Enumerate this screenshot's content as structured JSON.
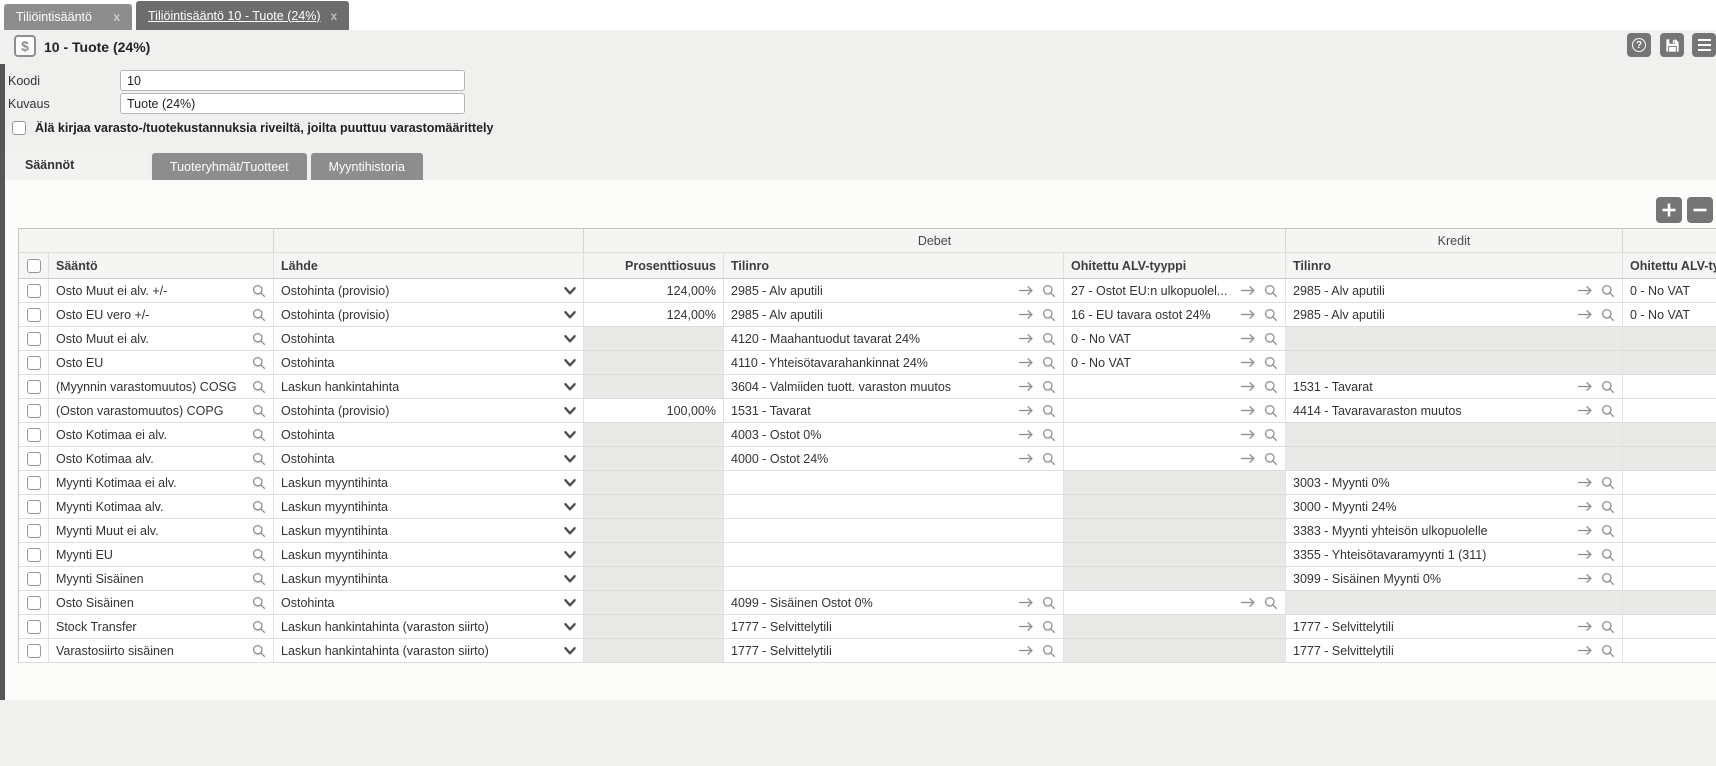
{
  "accent": {
    "tab_inactive": "#8d8d8d",
    "tab_active": "#6d6d6d",
    "button_gray": "#757575",
    "disabled_cell": "#e9e9e7"
  },
  "tabs": [
    {
      "label": "Tiliöintisääntö",
      "active": false
    },
    {
      "label": "Tiliöintisääntö 10 - Tuote (24%)",
      "active": true
    }
  ],
  "header": {
    "icon": "$",
    "title": "10 - Tuote (24%)"
  },
  "form": {
    "koodi_label": "Koodi",
    "koodi_value": "10",
    "kuvaus_label": "Kuvaus",
    "kuvaus_value": "Tuote (24%)",
    "checkbox_label": "Älä kirjaa varasto-/tuotekustannuksia riveiltä, joilta puuttuu varastomäärittely",
    "checkbox_checked": false
  },
  "subtabs": [
    {
      "label": "Säännöt",
      "active": true
    },
    {
      "label": "Tuoteryhmät/Tuotteet",
      "active": false
    },
    {
      "label": "Myyntihistoria",
      "active": false
    }
  ],
  "table": {
    "groups": {
      "debet": "Debet",
      "kredit": "Kredit"
    },
    "columns": [
      "Sääntö",
      "Lähde",
      "Prosenttiosuus",
      "Tilinro",
      "Ohitettu ALV-tyyppi",
      "Tilinro",
      "Ohitettu ALV-tyyppi"
    ],
    "rows": [
      {
        "rule": "Osto Muut ei alv. +/-",
        "source": "Ostohinta (provisio)",
        "pct": "124,00%",
        "pct_state": "value",
        "debet_tilinro": "2985 - Alv aputili",
        "debet_tilinro_state": "value",
        "debet_alv": "27 - Ostot EU:n ulkopuolel...",
        "debet_alv_state": "value",
        "kredit_tilinro": "2985 - Alv aputili",
        "kredit_tilinro_state": "value",
        "kredit_alv": "0 - No VAT",
        "kredit_alv_state": "value"
      },
      {
        "rule": "Osto EU vero +/-",
        "source": "Ostohinta (provisio)",
        "pct": "124,00%",
        "pct_state": "value",
        "debet_tilinro": "2985 - Alv aputili",
        "debet_tilinro_state": "value",
        "debet_alv": "16 - EU tavara ostot 24%",
        "debet_alv_state": "value",
        "kredit_tilinro": "2985 - Alv aputili",
        "kredit_tilinro_state": "value",
        "kredit_alv": "0 - No VAT",
        "kredit_alv_state": "value"
      },
      {
        "rule": "Osto Muut ei alv.",
        "source": "Ostohinta",
        "pct": "",
        "pct_state": "disabled",
        "debet_tilinro": "4120 - Maahantuodut tavarat 24%",
        "debet_tilinro_state": "value",
        "debet_alv": "0 - No VAT",
        "debet_alv_state": "value",
        "kredit_tilinro": "",
        "kredit_tilinro_state": "disabled",
        "kredit_alv": "",
        "kredit_alv_state": "disabled"
      },
      {
        "rule": "Osto EU",
        "source": "Ostohinta",
        "pct": "",
        "pct_state": "disabled",
        "debet_tilinro": "4110 - Yhteisötavarahankinnat 24%",
        "debet_tilinro_state": "value",
        "debet_alv": "0 - No VAT",
        "debet_alv_state": "value",
        "kredit_tilinro": "",
        "kredit_tilinro_state": "disabled",
        "kredit_alv": "",
        "kredit_alv_state": "disabled"
      },
      {
        "rule": "(Myynnin varastomuutos) COSG",
        "source": "Laskun hankintahinta",
        "pct": "",
        "pct_state": "disabled",
        "debet_tilinro": "3604 - Valmiiden tuott. varaston muutos",
        "debet_tilinro_state": "value",
        "debet_alv": "",
        "debet_alv_state": "icons",
        "kredit_tilinro": "1531 - Tavarat",
        "kredit_tilinro_state": "value",
        "kredit_alv": "",
        "kredit_alv_state": "blank"
      },
      {
        "rule": "(Oston varastomuutos) COPG",
        "source": "Ostohinta (provisio)",
        "pct": "100,00%",
        "pct_state": "value",
        "debet_tilinro": "1531 - Tavarat",
        "debet_tilinro_state": "value",
        "debet_alv": "",
        "debet_alv_state": "icons",
        "kredit_tilinro": "4414 - Tavaravaraston muutos",
        "kredit_tilinro_state": "value",
        "kredit_alv": "",
        "kredit_alv_state": "blank"
      },
      {
        "rule": "Osto Kotimaa ei alv.",
        "source": "Ostohinta",
        "pct": "",
        "pct_state": "disabled",
        "debet_tilinro": "4003 - Ostot 0%",
        "debet_tilinro_state": "value",
        "debet_alv": "",
        "debet_alv_state": "icons",
        "kredit_tilinro": "",
        "kredit_tilinro_state": "disabled",
        "kredit_alv": "",
        "kredit_alv_state": "disabled"
      },
      {
        "rule": "Osto Kotimaa alv.",
        "source": "Ostohinta",
        "pct": "",
        "pct_state": "disabled",
        "debet_tilinro": "4000 - Ostot 24%",
        "debet_tilinro_state": "value",
        "debet_alv": "",
        "debet_alv_state": "icons",
        "kredit_tilinro": "",
        "kredit_tilinro_state": "disabled",
        "kredit_alv": "",
        "kredit_alv_state": "disabled"
      },
      {
        "rule": "Myynti Kotimaa ei alv.",
        "source": "Laskun myyntihinta",
        "pct": "",
        "pct_state": "disabled",
        "debet_tilinro": "",
        "debet_tilinro_state": "blank",
        "debet_alv": "",
        "debet_alv_state": "disabled",
        "kredit_tilinro": "3003 - Myynti 0%",
        "kredit_tilinro_state": "value",
        "kredit_alv": "",
        "kredit_alv_state": "blank"
      },
      {
        "rule": "Myynti Kotimaa alv.",
        "source": "Laskun myyntihinta",
        "pct": "",
        "pct_state": "disabled",
        "debet_tilinro": "",
        "debet_tilinro_state": "blank",
        "debet_alv": "",
        "debet_alv_state": "disabled",
        "kredit_tilinro": "3000 - Myynti 24%",
        "kredit_tilinro_state": "value",
        "kredit_alv": "",
        "kredit_alv_state": "blank"
      },
      {
        "rule": "Myynti Muut ei alv.",
        "source": "Laskun myyntihinta",
        "pct": "",
        "pct_state": "disabled",
        "debet_tilinro": "",
        "debet_tilinro_state": "blank",
        "debet_alv": "",
        "debet_alv_state": "disabled",
        "kredit_tilinro": "3383 - Myynti yhteisön ulkopuolelle",
        "kredit_tilinro_state": "value",
        "kredit_alv": "",
        "kredit_alv_state": "blank"
      },
      {
        "rule": "Myynti EU",
        "source": "Laskun myyntihinta",
        "pct": "",
        "pct_state": "disabled",
        "debet_tilinro": "",
        "debet_tilinro_state": "blank",
        "debet_alv": "",
        "debet_alv_state": "disabled",
        "kredit_tilinro": "3355 - Yhteisötavaramyynti 1 (311)",
        "kredit_tilinro_state": "value",
        "kredit_alv": "",
        "kredit_alv_state": "blank"
      },
      {
        "rule": "Myynti Sisäinen",
        "source": "Laskun myyntihinta",
        "pct": "",
        "pct_state": "disabled",
        "debet_tilinro": "",
        "debet_tilinro_state": "blank",
        "debet_alv": "",
        "debet_alv_state": "disabled",
        "kredit_tilinro": "3099 - Sisäinen Myynti 0%",
        "kredit_tilinro_state": "value",
        "kredit_alv": "",
        "kredit_alv_state": "blank"
      },
      {
        "rule": "Osto Sisäinen",
        "source": "Ostohinta",
        "pct": "",
        "pct_state": "disabled",
        "debet_tilinro": "4099 - Sisäinen Ostot 0%",
        "debet_tilinro_state": "value",
        "debet_alv": "",
        "debet_alv_state": "icons",
        "kredit_tilinro": "",
        "kredit_tilinro_state": "disabled",
        "kredit_alv": "",
        "kredit_alv_state": "disabled"
      },
      {
        "rule": "Stock Transfer",
        "source": "Laskun hankintahinta (varaston siirto)",
        "pct": "",
        "pct_state": "disabled",
        "debet_tilinro": "1777 - Selvittelytili",
        "debet_tilinro_state": "value",
        "debet_alv": "",
        "debet_alv_state": "disabled",
        "kredit_tilinro": "1777 - Selvittelytili",
        "kredit_tilinro_state": "value",
        "kredit_alv": "",
        "kredit_alv_state": "blank"
      },
      {
        "rule": "Varastosiirto sisäinen",
        "source": "Laskun hankintahinta (varaston siirto)",
        "pct": "",
        "pct_state": "disabled",
        "debet_tilinro": "1777 - Selvittelytili",
        "debet_tilinro_state": "value",
        "debet_alv": "",
        "debet_alv_state": "disabled",
        "kredit_tilinro": "1777 - Selvittelytili",
        "kredit_tilinro_state": "value",
        "kredit_alv": "",
        "kredit_alv_state": "blank"
      }
    ]
  }
}
